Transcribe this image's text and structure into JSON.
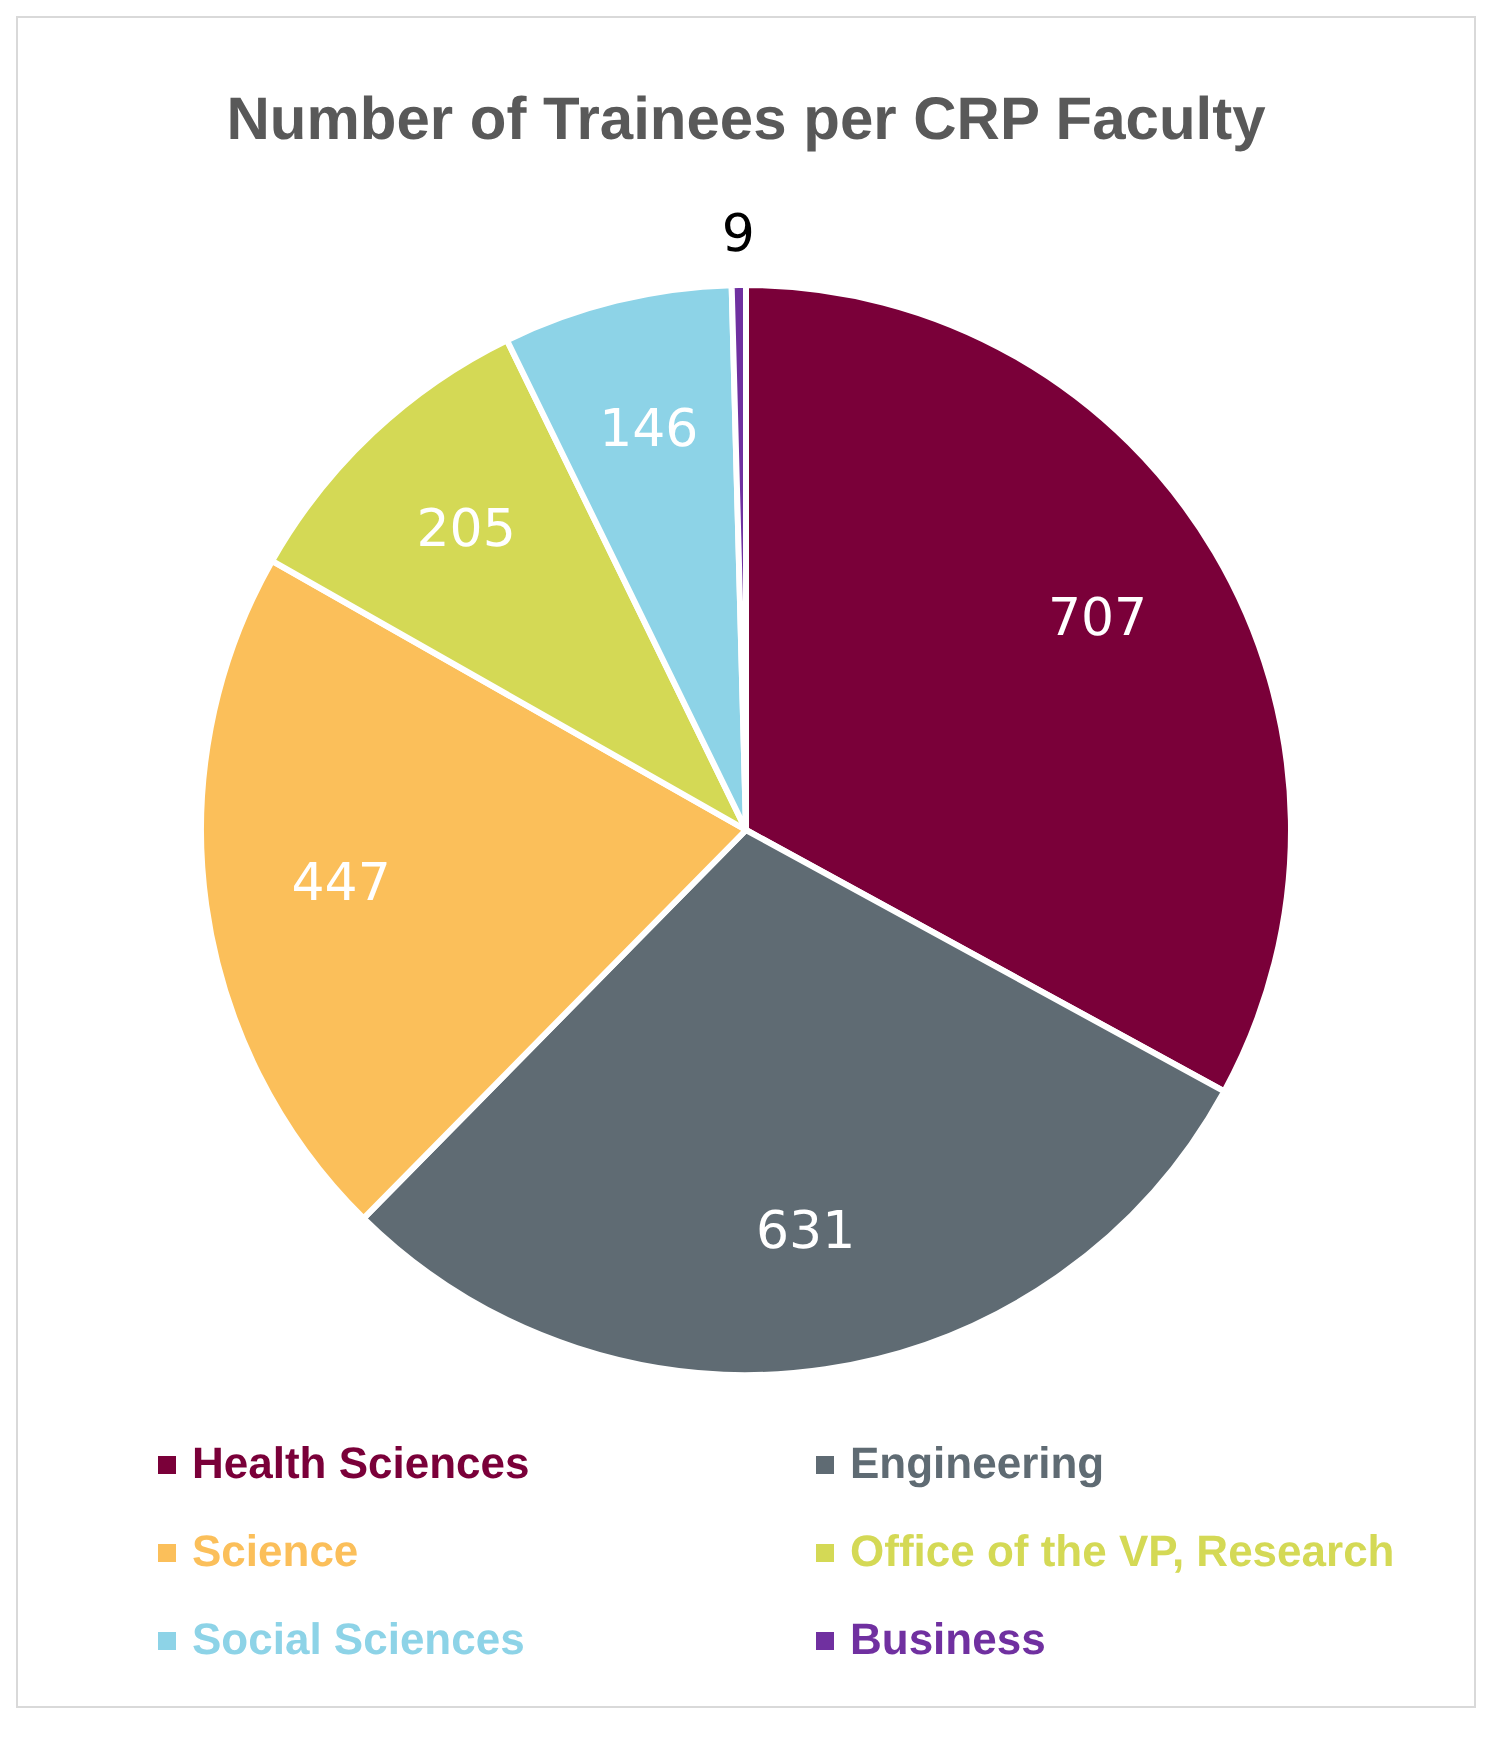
{
  "chart_data": {
    "type": "pie",
    "title": "Number of Trainees per CRP Faculty",
    "categories": [
      "Health Sciences",
      "Engineering",
      "Science",
      "Office of the VP, Research",
      "Social Sciences",
      "Business"
    ],
    "values": [
      707,
      631,
      447,
      205,
      146,
      9
    ],
    "colors": [
      "#7a0039",
      "#5f6b73",
      "#fbbf5a",
      "#d4d955",
      "#8dd3e7",
      "#7030a0"
    ],
    "data_labels": true,
    "legend": "bottom"
  }
}
